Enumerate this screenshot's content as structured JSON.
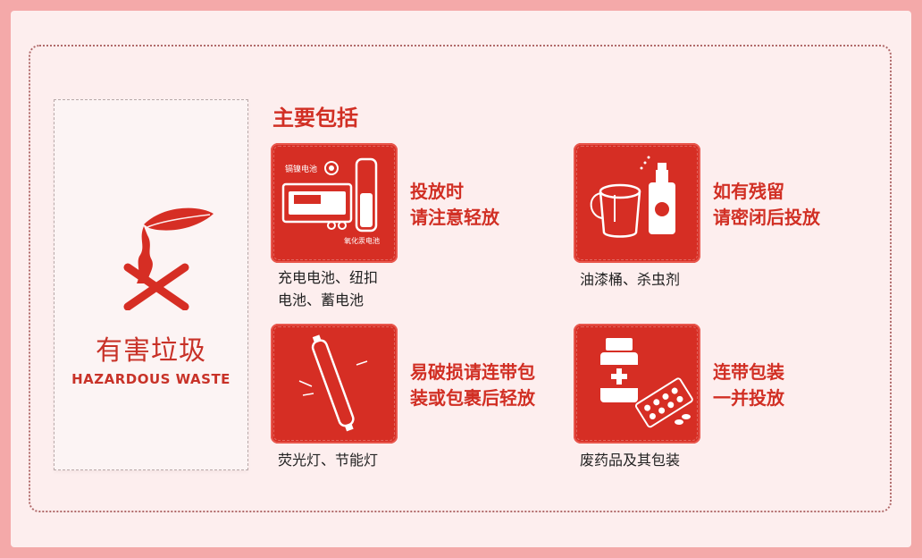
{
  "category": {
    "title": "有害垃圾",
    "subtitle": "HAZARDOUS WASTE",
    "icon": "hazardous-waste-icon"
  },
  "section_title": "主要包括",
  "items": [
    {
      "icon": "battery-icon",
      "icon_labels": [
        "镉镍电池",
        "氧化汞电池"
      ],
      "note_lines": [
        "投放时",
        "请注意轻放"
      ],
      "caption_lines": [
        "充电电池、纽扣",
        "电池、蓄电池"
      ]
    },
    {
      "icon": "paint-bucket-spray-icon",
      "note_lines": [
        "如有残留",
        "请密闭后投放"
      ],
      "caption_lines": [
        "油漆桶、杀虫剂"
      ]
    },
    {
      "icon": "fluorescent-tube-icon",
      "note_lines": [
        "易破损请连带包",
        "装或包裹后轻放"
      ],
      "caption_lines": [
        "荧光灯、节能灯"
      ]
    },
    {
      "icon": "medicine-bottle-icon",
      "note_lines": [
        "连带包装",
        "一并投放"
      ],
      "caption_lines": [
        "废药品及其包装"
      ]
    }
  ],
  "colors": {
    "accent": "#d62e24",
    "background": "#fdeeee",
    "border": "#f4a9a9"
  }
}
